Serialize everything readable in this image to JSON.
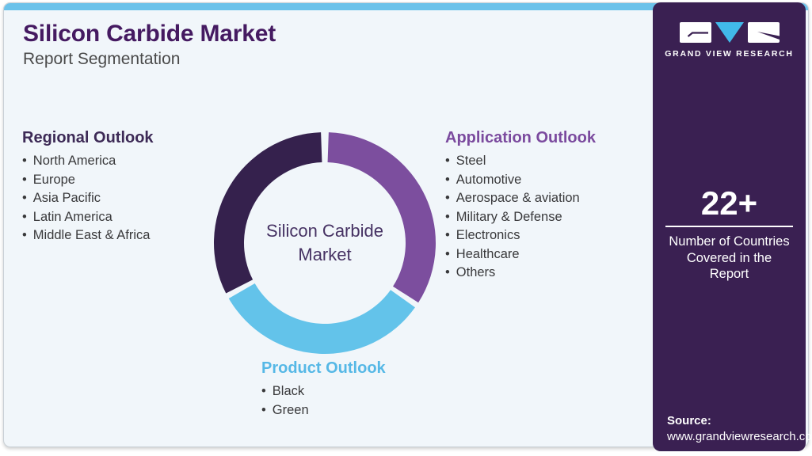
{
  "header": {
    "title": "Silicon Carbide Market",
    "subtitle": "Report Segmentation"
  },
  "sections": {
    "regional": {
      "heading": "Regional Outlook",
      "items": [
        "North America",
        "Europe",
        "Asia Pacific",
        "Latin America",
        "Middle East & Africa"
      ]
    },
    "application": {
      "heading": "Application Outlook",
      "items": [
        "Steel",
        "Automotive",
        "Aerospace & aviation",
        "Military & Defense",
        "Electronics",
        "Healthcare",
        "Others"
      ]
    },
    "product": {
      "heading": "Product Outlook",
      "items": [
        "Black",
        "Green"
      ]
    }
  },
  "chart_data": {
    "type": "donut",
    "center_label_lines": [
      "Silicon Carbide",
      "Market"
    ],
    "outer_radius": 140,
    "inner_radius": 102,
    "segments": [
      {
        "name": "application",
        "label": "Application Outlook",
        "color": "#7c4e9e",
        "start_deg": 2,
        "end_deg": 122.5,
        "value_pct": 33.5
      },
      {
        "name": "product",
        "label": "Product Outlook",
        "color": "#63c3ea",
        "start_deg": 125.5,
        "end_deg": 240,
        "value_pct": 31.8
      },
      {
        "name": "regional",
        "label": "Regional Outlook",
        "color": "#35214d",
        "start_deg": 243,
        "end_deg": 358,
        "value_pct": 31.9
      }
    ],
    "legend_position": "around-chart",
    "grid": false
  },
  "sidebar": {
    "logo_text": "GRAND VIEW RESEARCH",
    "stat_value": "22+",
    "stat_label": "Number of Countries Covered in the Report",
    "source_label": "Source:",
    "source_url": "www.grandviewresearch.com"
  },
  "colors": {
    "topbar": "#6bc2ea",
    "card_bg": "#f1f6fa",
    "title": "#451a61",
    "regional_heading": "#3d2a56",
    "application_heading": "#7b4a9e",
    "product_heading": "#56b8e6",
    "sidebar_bg": "#3a2052",
    "logo_v_blue": "#41b9e9",
    "segment_dark": "#35214d",
    "segment_purple": "#7c4e9e",
    "segment_blue": "#63c3ea"
  }
}
